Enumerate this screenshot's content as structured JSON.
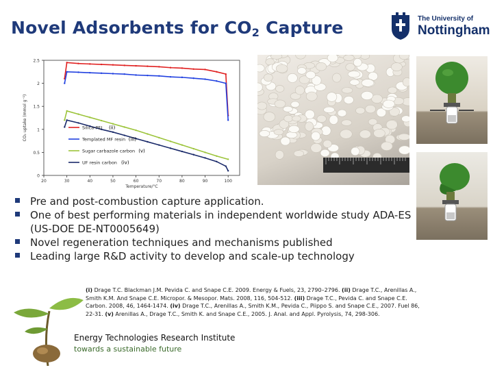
{
  "slide": {
    "title_prefix": "Novel Adsorbents for CO",
    "title_sub": "2",
    "title_suffix": " Capture"
  },
  "logo": {
    "line1": "The University of",
    "line2": "Nottingham"
  },
  "bullets": [
    "Pre and post-combustion capture application.",
    "One of best performing materials in independent worldwide study ADA-ES (US-DOE DE-NT0005649)",
    "Novel regeneration techniques and mechanisms published",
    "Leading large R&D activity to develop and scale-up technology"
  ],
  "references": [
    {
      "num": "(i)",
      "text": " Drage T.C. Blackman J.M. Pevida C. and Snape C.E. 2009. Energy & Fuels, 23, 2790–2796. "
    },
    {
      "num": "(ii)",
      "text": " Drage T.C., Arenillas A., Smith K.M. And Snape C.E. Micropor. & Mesopor. Mats. 2008, 116, 504-512. "
    },
    {
      "num": "(iii)",
      "text": " Drage T.C., Pevida C. and Snape C.E. Carbon. 2008, 46, 1464-1474. "
    },
    {
      "num": "(iv)",
      "text": " Drage T.C., Arenillas A., Smith K.M., Pevida C., Piippo S. and Snape C.E., 2007. Fuel 86, 22-31. "
    },
    {
      "num": "(v)",
      "text": " Arenillas A., Drage T.C., Smith K. and Snape C.E., 2005. J. Anal. and Appl. Pyrolysis, 74, 298-306."
    }
  ],
  "footer": {
    "institute": "Energy Technologies Research Institute",
    "tagline": "towards a sustainable future"
  },
  "colors": {
    "title": "#1f3a7a",
    "silica_pei": "#e02020",
    "templated_mf": "#2040e0",
    "sugar_carbazole": "#9cc43a",
    "uf_resin": "#1a2a6a"
  },
  "chart_data": {
    "type": "line",
    "xlabel": "Temperature/°C",
    "ylabel": "CO₂ uptake (mmol g⁻¹)",
    "xlim": [
      20,
      105
    ],
    "ylim": [
      0,
      2.5
    ],
    "xticks": [
      20,
      30,
      40,
      50,
      60,
      70,
      80,
      90,
      100
    ],
    "yticks": [
      0,
      0.5,
      1,
      1.5,
      2,
      2.5
    ],
    "legend_position": "bottom-left",
    "series": [
      {
        "name": "Silica-PEI",
        "label": "(ii)",
        "color": "#e02020",
        "x": [
          29,
          30,
          35,
          40,
          45,
          50,
          55,
          60,
          65,
          70,
          75,
          80,
          85,
          90,
          95,
          99,
          100
        ],
        "y": [
          2.1,
          2.45,
          2.43,
          2.42,
          2.41,
          2.4,
          2.39,
          2.38,
          2.37,
          2.36,
          2.34,
          2.33,
          2.31,
          2.3,
          2.25,
          2.2,
          1.3
        ]
      },
      {
        "name": "Templated MF resin",
        "label": "(iii)",
        "color": "#2040e0",
        "x": [
          29,
          30,
          35,
          40,
          45,
          50,
          55,
          60,
          65,
          70,
          75,
          80,
          85,
          90,
          95,
          99,
          100
        ],
        "y": [
          2.0,
          2.25,
          2.24,
          2.23,
          2.22,
          2.21,
          2.2,
          2.18,
          2.17,
          2.16,
          2.14,
          2.13,
          2.11,
          2.09,
          2.05,
          2.0,
          1.2
        ]
      },
      {
        "name": "Sugar carbazole carbon",
        "label": "(v)",
        "color": "#9cc43a",
        "x": [
          29,
          30,
          35,
          40,
          45,
          50,
          55,
          60,
          65,
          70,
          75,
          80,
          85,
          90,
          95,
          100
        ],
        "y": [
          1.2,
          1.4,
          1.33,
          1.26,
          1.19,
          1.12,
          1.05,
          0.98,
          0.9,
          0.82,
          0.74,
          0.66,
          0.58,
          0.5,
          0.42,
          0.35
        ]
      },
      {
        "name": "UF resin carbon",
        "label": "(iv)",
        "color": "#1a2a6a",
        "x": [
          29,
          30,
          35,
          40,
          45,
          50,
          55,
          60,
          65,
          70,
          75,
          80,
          85,
          90,
          95,
          99,
          100
        ],
        "y": [
          1.05,
          1.2,
          1.14,
          1.07,
          1.0,
          0.94,
          0.87,
          0.8,
          0.73,
          0.66,
          0.59,
          0.52,
          0.45,
          0.38,
          0.3,
          0.2,
          0.1
        ]
      }
    ]
  }
}
